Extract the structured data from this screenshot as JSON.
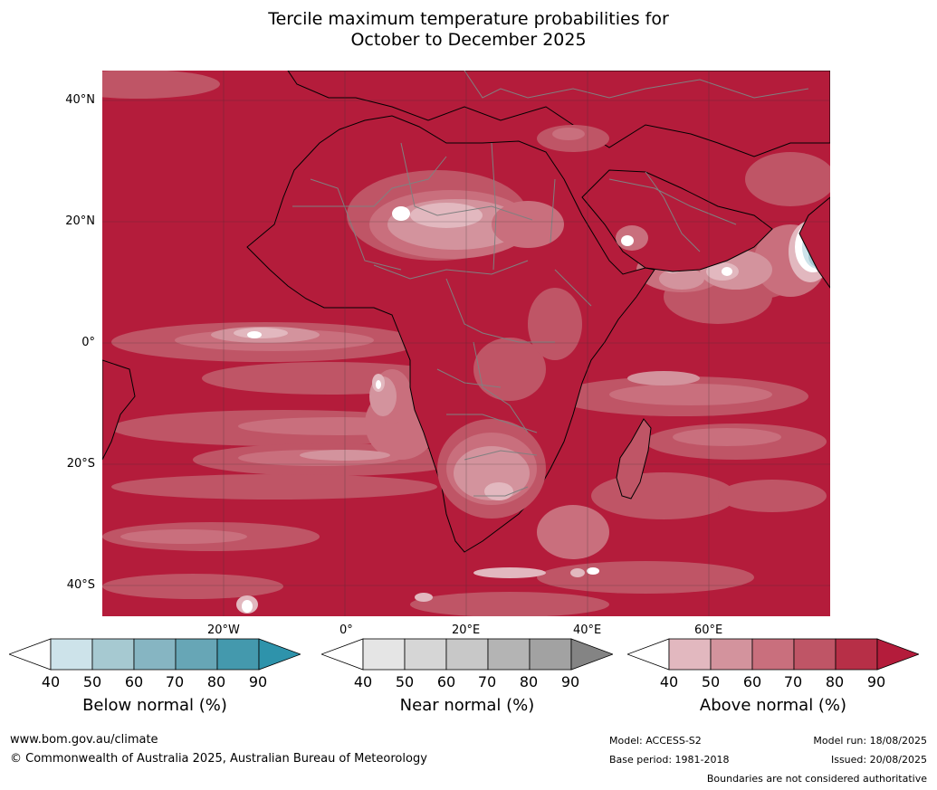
{
  "title": {
    "line1": "Tercile maximum temperature probabilities for",
    "line2": "October to December 2025"
  },
  "map": {
    "region": "Africa",
    "lat_labels": [
      "40°N",
      "20°N",
      "0°",
      "20°S",
      "40°S"
    ],
    "lon_labels": [
      "20°W",
      "0°",
      "20°E",
      "40°E",
      "60°E"
    ]
  },
  "colorbars": [
    {
      "label": "Below normal (%)",
      "ticks": [
        "40",
        "50",
        "60",
        "70",
        "80",
        "90"
      ],
      "colors": [
        "#ffffff",
        "#cde3ea",
        "#a6c9d1",
        "#86b5c2",
        "#67a6b6",
        "#4499ad",
        "#2e93ab"
      ]
    },
    {
      "label": "Near normal (%)",
      "ticks": [
        "40",
        "50",
        "60",
        "70",
        "80",
        "90"
      ],
      "colors": [
        "#ffffff",
        "#e5e5e5",
        "#d6d6d6",
        "#c8c8c8",
        "#b4b4b4",
        "#a2a2a2",
        "#848484"
      ]
    },
    {
      "label": "Above normal (%)",
      "ticks": [
        "40",
        "50",
        "60",
        "70",
        "80",
        "90"
      ],
      "colors": [
        "#ffffff",
        "#e2b8bf",
        "#d3939d",
        "#c96f7d",
        "#bf5566",
        "#b72f47",
        "#b41c3b"
      ]
    }
  ],
  "footer": {
    "website": "www.bom.gov.au/climate",
    "copyright": "© Commonwealth of Australia 2025, Australian Bureau of Meteorology",
    "model": "Model: ACCESS-S2",
    "base_period": "Base period: 1981-2018",
    "model_run": "Model run: 18/08/2025",
    "issued": "Issued: 20/08/2025",
    "disclaimer": "Boundaries are not considered authoritative"
  },
  "colors": {
    "ocean_dominant": "#b41c3b",
    "band_80": "#bf5566",
    "band_70": "#c96f7d",
    "band_60": "#d3939d",
    "band_50": "#e2b8bf",
    "below_light": "#cde3ea",
    "below_mid": "#a6c9d1"
  }
}
